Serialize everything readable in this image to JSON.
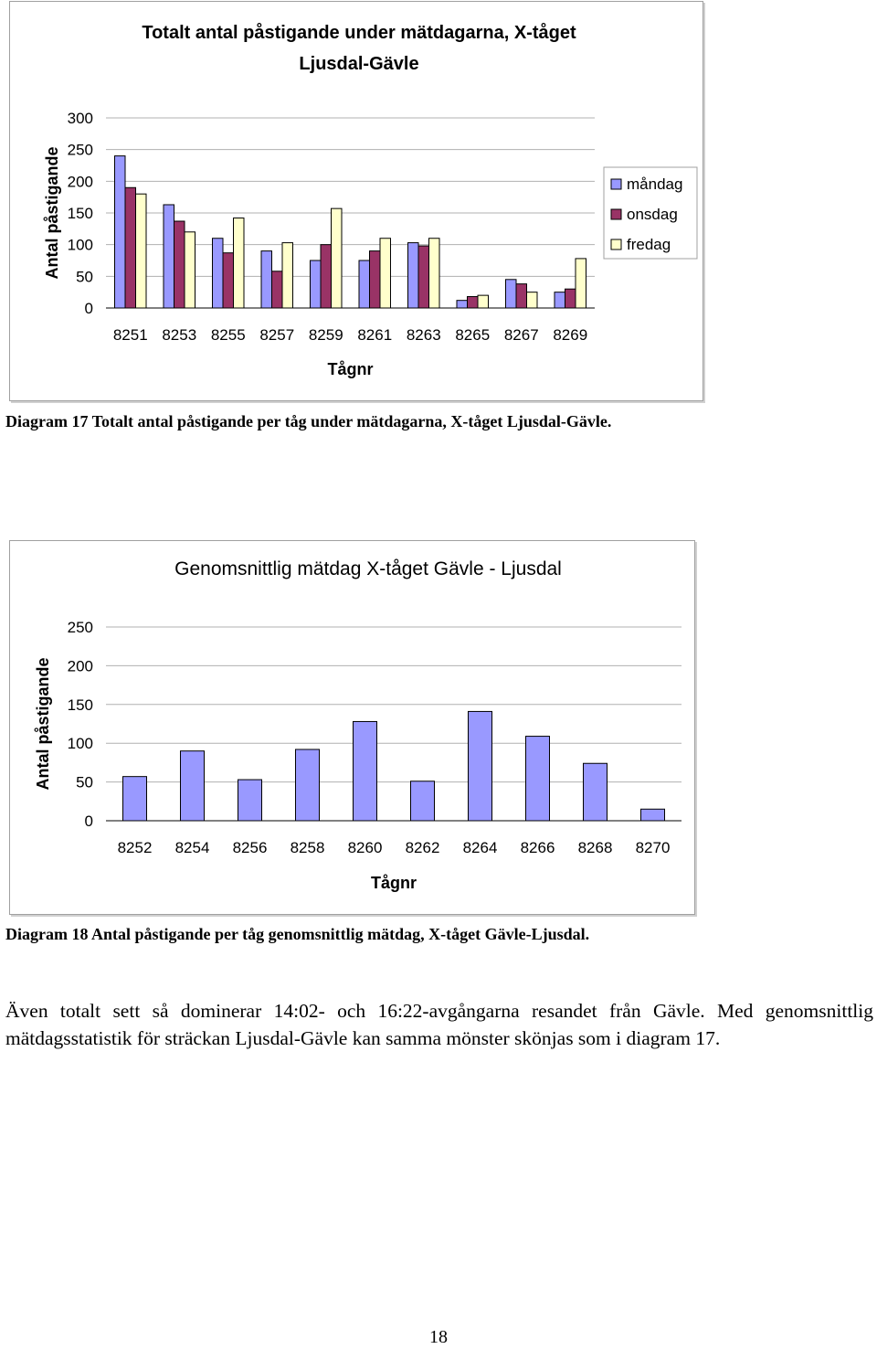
{
  "chart_data": [
    {
      "type": "bar",
      "title": "Totalt antal påstigande under mätdagarna, X-tåget Ljusdal-Gävle",
      "title_lines": [
        "Totalt antal påstigande under mätdagarna, X-tåget",
        "Ljusdal-Gävle"
      ],
      "xlabel": "Tågnr",
      "ylabel": "Antal påstigande",
      "categories": [
        "8251",
        "8253",
        "8255",
        "8257",
        "8259",
        "8261",
        "8263",
        "8265",
        "8267",
        "8269"
      ],
      "series": [
        {
          "name": "måndag",
          "color": "#9999ff",
          "values": [
            240,
            163,
            110,
            90,
            75,
            75,
            103,
            12,
            45,
            25
          ]
        },
        {
          "name": "onsdag",
          "color": "#993366",
          "values": [
            190,
            137,
            87,
            58,
            100,
            90,
            98,
            18,
            38,
            30
          ]
        },
        {
          "name": "fredag",
          "color": "#ffffcc",
          "values": [
            180,
            120,
            142,
            103,
            157,
            110,
            110,
            20,
            25,
            78
          ]
        }
      ],
      "yticks": [
        0,
        50,
        100,
        150,
        200,
        250,
        300
      ],
      "ylim": [
        0,
        300
      ],
      "grid": true,
      "legend": "right"
    },
    {
      "type": "bar",
      "title": "Genomsnittlig mätdag X-tåget Gävle - Ljusdal",
      "xlabel": "Tågnr",
      "ylabel": "Antal påstigande",
      "categories": [
        "8252",
        "8254",
        "8256",
        "8258",
        "8260",
        "8262",
        "8264",
        "8266",
        "8268",
        "8270"
      ],
      "series": [
        {
          "color": "#9999ff",
          "values": [
            57,
            90,
            53,
            92,
            128,
            51,
            141,
            109,
            74,
            15
          ]
        }
      ],
      "yticks": [
        0,
        50,
        100,
        150,
        200,
        250
      ],
      "ylim": [
        0,
        250
      ],
      "grid": true
    }
  ],
  "captions": {
    "diagram17": "Diagram 17 Totalt antal påstigande per tåg under mätdagarna, X-tåget Ljusdal-Gävle.",
    "diagram18": "Diagram 18 Antal påstigande per tåg genomsnittlig mätdag, X-tåget Gävle-Ljusdal."
  },
  "paragraph": "Även totalt sett så dominerar 14:02- och 16:22-avgångarna resandet från Gävle. Med genomsnittlig mätdagsstatistik för sträckan Ljusdal-Gävle kan samma mönster skönjas som i diagram 17.",
  "page_number": "18"
}
